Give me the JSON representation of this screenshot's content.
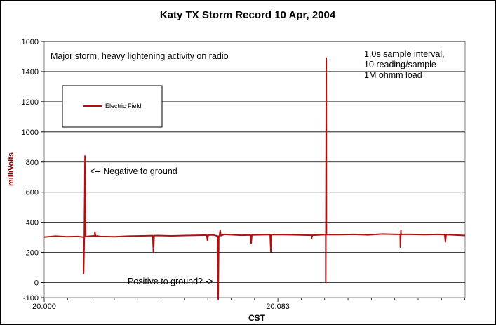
{
  "chart_data": {
    "type": "line",
    "title": "Katy TX Storm Record   10 Apr, 2004",
    "xlabel": "CST",
    "ylabel": "milliVolts",
    "ylim": [
      -100,
      1600
    ],
    "yticks": [
      -100,
      0,
      200,
      400,
      600,
      800,
      1000,
      1200,
      1400,
      1600
    ],
    "ytick_labels": [
      "-100",
      "0",
      "200",
      "400",
      "600",
      "800",
      "1000",
      "1200",
      "1400",
      "1600"
    ],
    "xlim": [
      20.0,
      20.1495
    ],
    "xticks": [
      20.0,
      20.083
    ],
    "xtick_labels": [
      "20.000",
      "20.083"
    ],
    "grid": "horizontal",
    "legend": {
      "position": "upper-left",
      "entries": [
        "Electric Field"
      ]
    },
    "series": [
      {
        "name": "Electric Field",
        "color": "#b01010",
        "baseline": [
          [
            20.0,
            302
          ],
          [
            20.004,
            308
          ],
          [
            20.008,
            304
          ],
          [
            20.012,
            306
          ],
          [
            20.014,
            302
          ],
          [
            20.015,
            306
          ],
          [
            20.018,
            310
          ],
          [
            20.02,
            306
          ],
          [
            20.025,
            304
          ],
          [
            20.03,
            308
          ],
          [
            20.035,
            310
          ],
          [
            20.04,
            312
          ],
          [
            20.045,
            310
          ],
          [
            20.05,
            312
          ],
          [
            20.055,
            314
          ],
          [
            20.06,
            316
          ],
          [
            20.062,
            308
          ],
          [
            20.064,
            320
          ],
          [
            20.07,
            314
          ],
          [
            20.075,
            316
          ],
          [
            20.08,
            318
          ],
          [
            20.085,
            318
          ],
          [
            20.09,
            316
          ],
          [
            20.095,
            314
          ],
          [
            20.1,
            318
          ],
          [
            20.105,
            318
          ],
          [
            20.11,
            320
          ],
          [
            20.115,
            316
          ],
          [
            20.12,
            322
          ],
          [
            20.125,
            320
          ],
          [
            20.13,
            320
          ],
          [
            20.135,
            318
          ],
          [
            20.14,
            320
          ],
          [
            20.145,
            316
          ],
          [
            20.1495,
            312
          ]
        ],
        "spikes": [
          {
            "x": 20.014,
            "y": 60
          },
          {
            "x": 20.0145,
            "y": 840
          },
          {
            "x": 20.018,
            "y": 335
          },
          {
            "x": 20.0388,
            "y": 200
          },
          {
            "x": 20.058,
            "y": 280
          },
          {
            "x": 20.0618,
            "y": -110
          },
          {
            "x": 20.0625,
            "y": 345
          },
          {
            "x": 20.0735,
            "y": 258
          },
          {
            "x": 20.0805,
            "y": 205
          },
          {
            "x": 20.095,
            "y": 295
          },
          {
            "x": 20.1,
            "y": 0
          },
          {
            "x": 20.1002,
            "y": 1490
          },
          {
            "x": 20.1265,
            "y": 235
          },
          {
            "x": 20.1267,
            "y": 345
          },
          {
            "x": 20.1425,
            "y": 270
          }
        ]
      }
    ],
    "annotations": [
      "Major storm, heavy lightening activity on radio",
      "1.0s sample interval,",
      "10 reading/sample",
      "1M ohmm load",
      "<-- Negative to ground",
      "Positive to ground? ->"
    ]
  }
}
